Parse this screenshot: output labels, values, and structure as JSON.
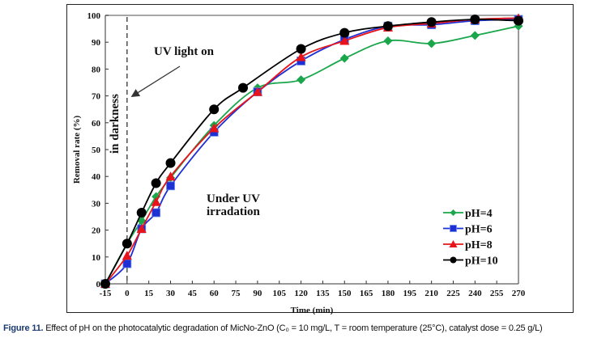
{
  "chart_data": {
    "type": "line",
    "title": "",
    "xlabel": "Time (min)",
    "ylabel": "Removal rate (%)",
    "xlim": [
      -15,
      270
    ],
    "ylim": [
      0,
      100
    ],
    "x_ticks": [
      -15,
      0,
      15,
      30,
      45,
      60,
      75,
      90,
      105,
      120,
      135,
      150,
      165,
      180,
      195,
      210,
      225,
      240,
      255,
      270
    ],
    "y_ticks": [
      0,
      10,
      20,
      30,
      40,
      50,
      60,
      70,
      80,
      90,
      100
    ],
    "grid": false,
    "legend_position": "bottom-right",
    "x": [
      -15,
      0,
      10,
      20,
      30,
      60,
      90,
      120,
      150,
      180,
      210,
      240,
      270
    ],
    "series": [
      {
        "name": "pH=4",
        "color": "#1aa64a",
        "marker": "diamond",
        "values": [
          0,
          15,
          23.5,
          32.5,
          39.5,
          59,
          73,
          76,
          84,
          90.5,
          89.5,
          92.5,
          96
        ]
      },
      {
        "name": "pH=6",
        "color": "#1f2fd6",
        "marker": "square",
        "values": [
          0,
          7.5,
          20.5,
          26.5,
          36.5,
          56.5,
          71.5,
          83,
          91,
          96,
          96.5,
          98,
          98.5
        ]
      },
      {
        "name": "pH=8",
        "color": "#e8141c",
        "marker": "triangle",
        "values": [
          0,
          10.5,
          20.5,
          30.5,
          40,
          58,
          71.5,
          84.5,
          90.5,
          95.5,
          97,
          98.5,
          99
        ]
      },
      {
        "name": "pH=10",
        "color": "#000000",
        "marker": "circle",
        "x": [
          -15,
          0,
          10,
          20,
          30,
          60,
          80,
          120,
          150,
          180,
          210,
          240,
          270
        ],
        "values": [
          0,
          15,
          26.5,
          37.5,
          45,
          65,
          73,
          87.5,
          93.5,
          96,
          97.5,
          98.5,
          98
        ]
      }
    ],
    "annotations": [
      {
        "text": "UV light on",
        "type": "arrow-label",
        "points_to": {
          "x": 0,
          "y": 70
        }
      },
      {
        "text": "in darkness",
        "type": "rotated-label"
      },
      {
        "text": "Under UV",
        "type": "label"
      },
      {
        "text": "irradation",
        "type": "label"
      },
      {
        "type": "dashed-vline",
        "x": 0
      }
    ]
  },
  "caption": {
    "figure_label": "Figure 11.",
    "text": " Effect of pH on the photocatalytic degradation of MicNo-ZnO (C₀ = 10 mg/L, T = room temperature (25°C), catalyst dose = 0.25 g/L)"
  }
}
